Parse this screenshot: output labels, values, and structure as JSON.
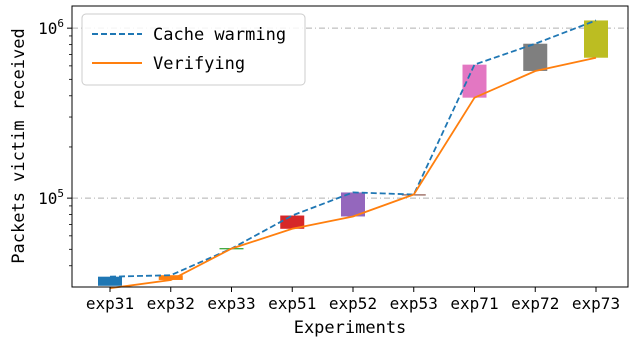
{
  "chart_data": {
    "type": "line",
    "title": "",
    "xlabel": "Experiments",
    "ylabel": "Packets victim received",
    "yscale": "log",
    "ylim": [
      30000,
      1350000
    ],
    "y_tick_labels": [
      {
        "value": 100000,
        "base": "10",
        "exp": "5"
      },
      {
        "value": 1000000,
        "base": "10",
        "exp": "6"
      }
    ],
    "grid": {
      "horizontal_major": true,
      "style": "dash-dot",
      "color": "#b0b0b0"
    },
    "legend_placement": "top-left",
    "categories": [
      "exp31",
      "exp32",
      "exp33",
      "exp51",
      "exp52",
      "exp53",
      "exp71",
      "exp72",
      "exp73"
    ],
    "series": [
      {
        "name": "Cache warming",
        "style": "dashed",
        "color": "#1f77b4",
        "values": [
          34500,
          35200,
          50500,
          79000,
          108000,
          105000,
          610000,
          810000,
          1110000
        ]
      },
      {
        "name": "Verifying",
        "style": "solid",
        "color": "#ff7f0e",
        "values": [
          29500,
          33000,
          50500,
          66000,
          78000,
          105000,
          390000,
          560000,
          670000
        ]
      }
    ],
    "range_bars": [
      {
        "category": "exp31",
        "color": "#1f77b4",
        "low": 30500,
        "high": 34500
      },
      {
        "category": "exp32",
        "color": "#ff7f0e",
        "low": 33000,
        "high": 35200
      },
      {
        "category": "exp33",
        "color": "#2ca02c",
        "low": 50200,
        "high": 50800
      },
      {
        "category": "exp51",
        "color": "#d62728",
        "low": 66000,
        "high": 79000
      },
      {
        "category": "exp52",
        "color": "#9467bd",
        "low": 78000,
        "high": 108000
      },
      {
        "category": "exp53",
        "color": "#8c564b",
        "low": 104700,
        "high": 105300
      },
      {
        "category": "exp71",
        "color": "#e377c2",
        "low": 390000,
        "high": 610000
      },
      {
        "category": "exp72",
        "color": "#7f7f7f",
        "low": 560000,
        "high": 810000
      },
      {
        "category": "exp73",
        "color": "#bcbd22",
        "low": 670000,
        "high": 1110000
      }
    ]
  }
}
